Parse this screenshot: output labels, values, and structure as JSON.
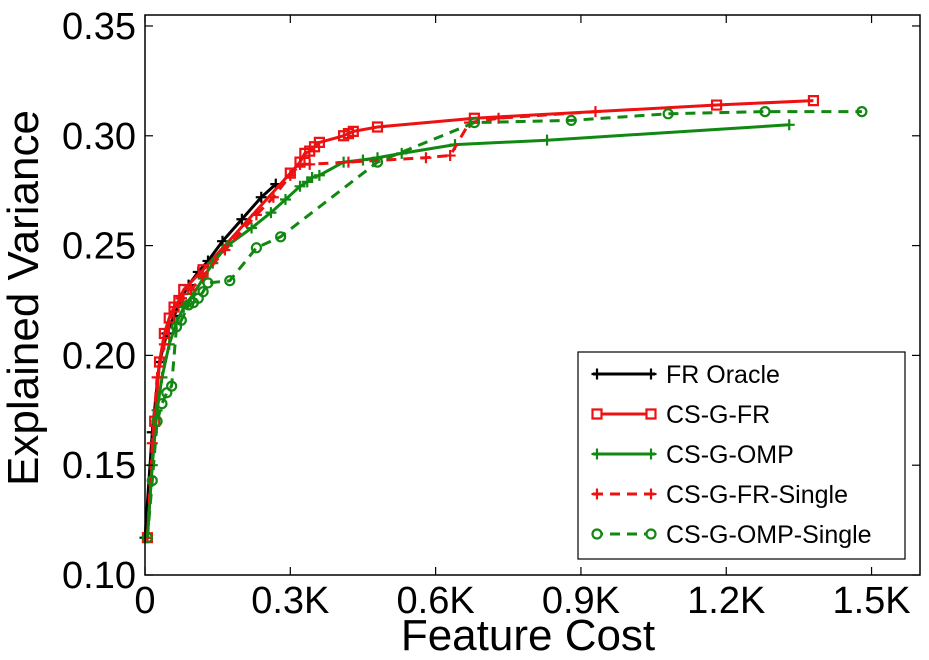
{
  "chart_data": {
    "type": "line",
    "xlabel": "Feature Cost",
    "ylabel": "Explained Variance",
    "xlim": [
      0,
      1600
    ],
    "ylim": [
      0.1,
      0.355
    ],
    "x_ticks": [
      {
        "value": 0,
        "label": "0"
      },
      {
        "value": 300,
        "label": "0.3K"
      },
      {
        "value": 600,
        "label": "0.6K"
      },
      {
        "value": 900,
        "label": "0.9K"
      },
      {
        "value": 1200,
        "label": "1.2K"
      },
      {
        "value": 1500,
        "label": "1.5K"
      }
    ],
    "y_ticks": [
      {
        "value": 0.1,
        "label": "0.10"
      },
      {
        "value": 0.15,
        "label": "0.15"
      },
      {
        "value": 0.2,
        "label": "0.20"
      },
      {
        "value": 0.25,
        "label": "0.25"
      },
      {
        "value": 0.3,
        "label": "0.30"
      },
      {
        "value": 0.35,
        "label": "0.35"
      }
    ],
    "grid": false,
    "legend_position": "bottom-right",
    "series": [
      {
        "name": "FR Oracle",
        "color": "#000000",
        "dash": "solid",
        "marker": "plus",
        "x": [
          0,
          15,
          30,
          45,
          60,
          75,
          90,
          110,
          130,
          160,
          200,
          240,
          270
        ],
        "y": [
          0.117,
          0.165,
          0.197,
          0.21,
          0.218,
          0.226,
          0.232,
          0.238,
          0.243,
          0.252,
          0.262,
          0.272,
          0.278
        ]
      },
      {
        "name": "CS-G-FR",
        "color": "#ee1111",
        "dash": "solid",
        "marker": "square",
        "x": [
          5,
          20,
          30,
          40,
          50,
          60,
          70,
          80,
          120,
          300,
          320,
          330,
          340,
          350,
          360,
          410,
          420,
          430,
          480,
          680,
          1180,
          1380
        ],
        "y": [
          0.117,
          0.17,
          0.197,
          0.21,
          0.217,
          0.222,
          0.225,
          0.23,
          0.239,
          0.283,
          0.288,
          0.292,
          0.293,
          0.295,
          0.297,
          0.3,
          0.301,
          0.302,
          0.304,
          0.308,
          0.314,
          0.316
        ]
      },
      {
        "name": "CS-G-OMP",
        "color": "#118811",
        "dash": "solid",
        "marker": "plus",
        "x": [
          5,
          15,
          25,
          35,
          50,
          65,
          80,
          100,
          120,
          140,
          170,
          220,
          260,
          290,
          320,
          335,
          345,
          360,
          410,
          450,
          480,
          530,
          640,
          830,
          1330
        ],
        "y": [
          0.117,
          0.15,
          0.175,
          0.19,
          0.205,
          0.215,
          0.222,
          0.228,
          0.235,
          0.242,
          0.25,
          0.258,
          0.265,
          0.271,
          0.277,
          0.279,
          0.281,
          0.282,
          0.288,
          0.289,
          0.29,
          0.292,
          0.296,
          0.298,
          0.305
        ]
      },
      {
        "name": "CS-G-FR-Single",
        "color": "#ee1111",
        "dash": "dashed",
        "marker": "plus",
        "x": [
          5,
          15,
          25,
          40,
          50,
          60,
          75,
          95,
          120,
          165,
          230,
          265,
          300,
          320,
          340,
          420,
          580,
          630,
          670,
          730,
          930
        ],
        "y": [
          0.117,
          0.16,
          0.19,
          0.205,
          0.215,
          0.222,
          0.226,
          0.23,
          0.236,
          0.248,
          0.264,
          0.272,
          0.282,
          0.287,
          0.287,
          0.288,
          0.29,
          0.291,
          0.306,
          0.308,
          0.311
        ]
      },
      {
        "name": "CS-G-OMP-Single",
        "color": "#118811",
        "dash": "dashed",
        "marker": "circle",
        "x": [
          5,
          15,
          25,
          35,
          45,
          55,
          65,
          75,
          90,
          100,
          110,
          120,
          130,
          175,
          230,
          280,
          480,
          680,
          880,
          1080,
          1280,
          1480
        ],
        "y": [
          0.117,
          0.143,
          0.17,
          0.178,
          0.183,
          0.186,
          0.213,
          0.216,
          0.223,
          0.224,
          0.226,
          0.229,
          0.233,
          0.234,
          0.249,
          0.254,
          0.288,
          0.306,
          0.307,
          0.31,
          0.311,
          0.311
        ]
      }
    ]
  }
}
